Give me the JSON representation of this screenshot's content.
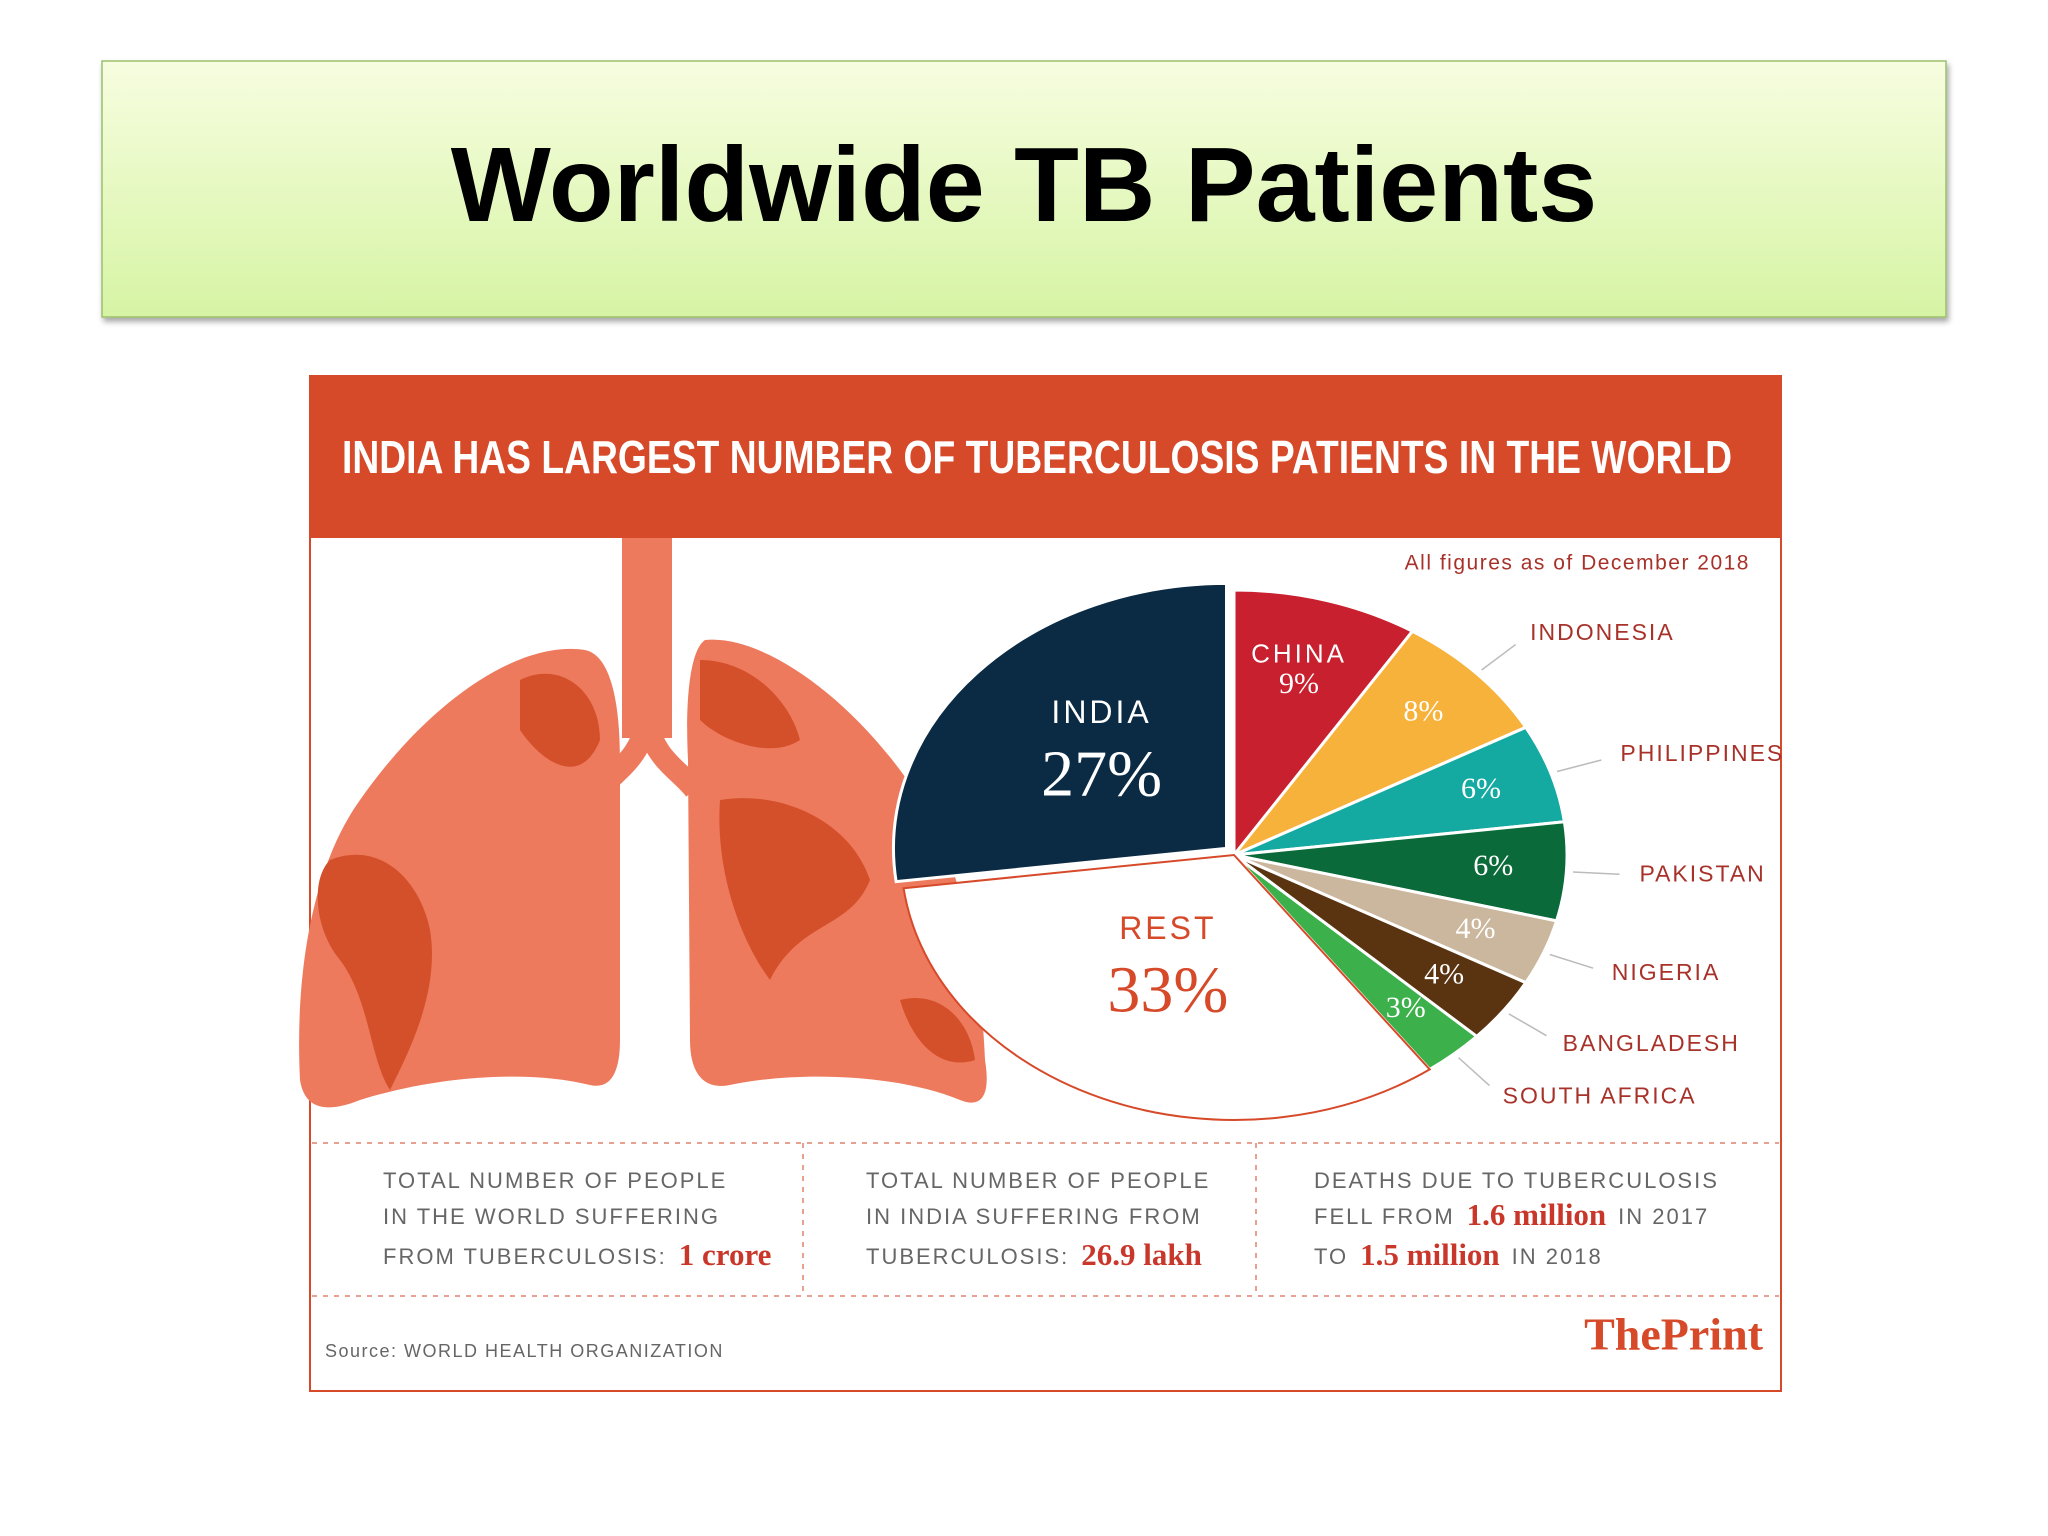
{
  "slide_title": "Worldwide TB Patients",
  "chart_data": {
    "type": "pie",
    "title": "INDIA HAS LARGEST NUMBER OF TUBERCULOSIS PATIENTS IN THE WORLD",
    "subtitle": "All figures as of December 2018",
    "categories": [
      "CHINA",
      "INDONESIA",
      "PHILIPPINES",
      "PAKISTAN",
      "NIGERIA",
      "BANGLADESH",
      "SOUTH AFRICA",
      "REST",
      "INDIA"
    ],
    "values": [
      9,
      8,
      6,
      6,
      4,
      4,
      3,
      33,
      27
    ],
    "value_labels": [
      "9%",
      "8%",
      "6%",
      "6%",
      "4%",
      "4%",
      "3%",
      "33%",
      "27%"
    ],
    "colors": [
      "#c8202f",
      "#f7b23b",
      "#14a9a1",
      "#0b6a3a",
      "#cbb79d",
      "#5a3310",
      "#3cb04a",
      "#ffffff",
      "#0b2b45"
    ]
  },
  "stats": [
    [
      [
        "TOTAL NUMBER OF PEOPLE"
      ],
      [
        "IN THE WORLD SUFFERING"
      ],
      [
        "FROM TUBERCULOSIS:",
        "1 crore"
      ]
    ],
    [
      [
        "TOTAL NUMBER OF PEOPLE"
      ],
      [
        "IN INDIA SUFFERING FROM"
      ],
      [
        "TUBERCULOSIS:",
        "26.9 lakh"
      ]
    ],
    [
      [
        "DEATHS DUE TO TUBERCULOSIS"
      ],
      [
        "FELL FROM",
        "1.6 million",
        "IN 2017"
      ],
      [
        "TO",
        "1.5 million",
        "IN 2018"
      ]
    ]
  ],
  "source": "Source: WORLD HEALTH ORGANIZATION",
  "brand": "ThePrint"
}
